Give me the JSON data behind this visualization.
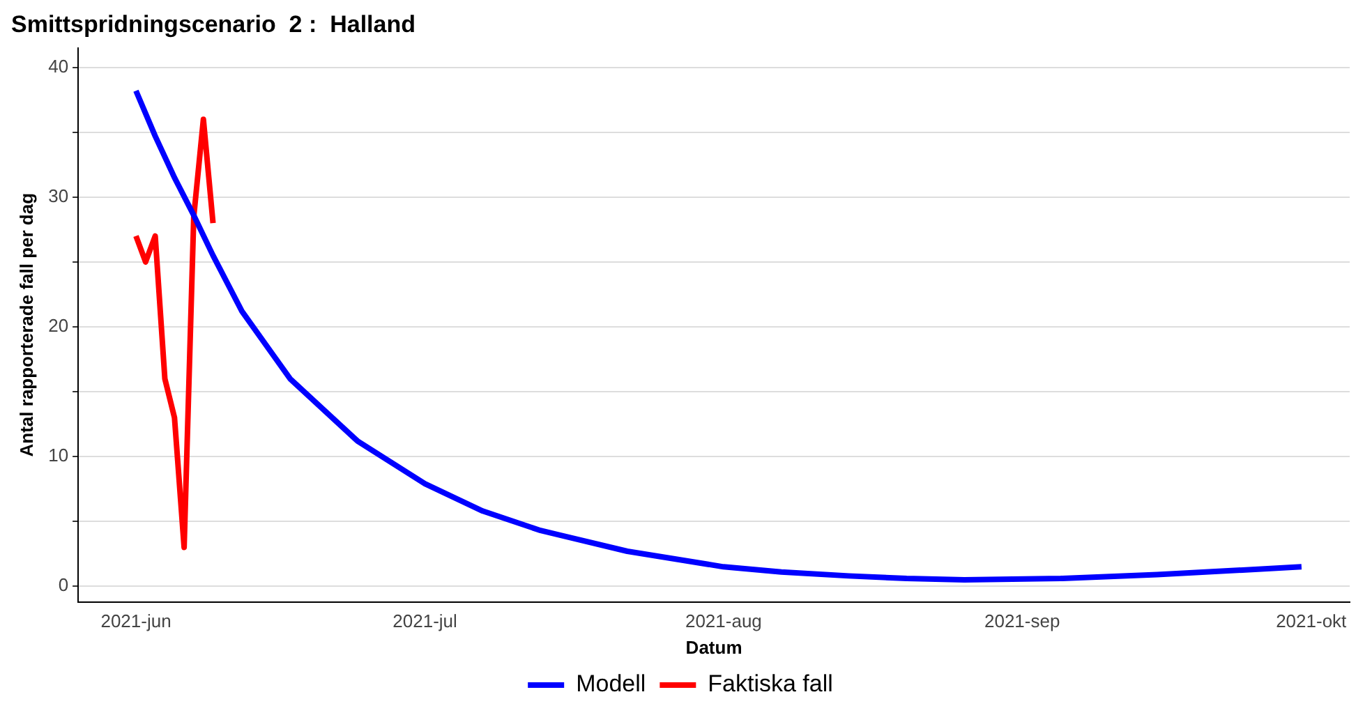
{
  "chart_data": {
    "type": "line",
    "title": "Smittspridningscenario  2 :  Halland",
    "xlabel": "Datum",
    "ylabel": "Antal rapporterade fall per dag",
    "series": [
      {
        "name": "Modell",
        "color": "#0000ff",
        "x": [
          "2021-06-01",
          "2021-06-03",
          "2021-06-05",
          "2021-06-07",
          "2021-06-09",
          "2021-06-12",
          "2021-06-17",
          "2021-06-24",
          "2021-07-01",
          "2021-07-07",
          "2021-07-13",
          "2021-07-22",
          "2021-08-01",
          "2021-08-07",
          "2021-08-14",
          "2021-08-20",
          "2021-08-26",
          "2021-09-05",
          "2021-09-15",
          "2021-09-30"
        ],
        "values": [
          38.2,
          34.7,
          31.5,
          28.6,
          25.5,
          21.2,
          16.0,
          11.2,
          7.9,
          5.8,
          4.3,
          2.7,
          1.5,
          1.1,
          0.8,
          0.6,
          0.5,
          0.6,
          0.9,
          1.5
        ]
      },
      {
        "name": "Faktiska fall",
        "color": "#ff0000",
        "x": [
          "2021-06-01",
          "2021-06-02",
          "2021-06-03",
          "2021-06-04",
          "2021-06-05",
          "2021-06-06",
          "2021-06-07",
          "2021-06-08",
          "2021-06-09"
        ],
        "values": [
          27,
          25,
          27,
          16,
          13,
          3,
          28.5,
          36,
          28
        ]
      }
    ],
    "xlim": [
      "2021-05-26",
      "2021-10-05"
    ],
    "xticks": [
      {
        "value": "2021-06-01",
        "label": "2021-jun"
      },
      {
        "value": "2021-07-01",
        "label": "2021-jul"
      },
      {
        "value": "2021-08-01",
        "label": "2021-aug"
      },
      {
        "value": "2021-09-01",
        "label": "2021-sep"
      },
      {
        "value": "2021-10-01",
        "label": "2021-okt"
      }
    ],
    "ylim": [
      -1.2,
      41.5
    ],
    "yticks": [
      0,
      {
        "value": 5,
        "label": null
      },
      10,
      {
        "value": 15,
        "label": null
      },
      20,
      {
        "value": 25,
        "label": null
      },
      30,
      {
        "value": 35,
        "label": null
      },
      40
    ],
    "grid": "y",
    "legend": "bottom",
    "marker": "none",
    "line_style": "solid"
  }
}
